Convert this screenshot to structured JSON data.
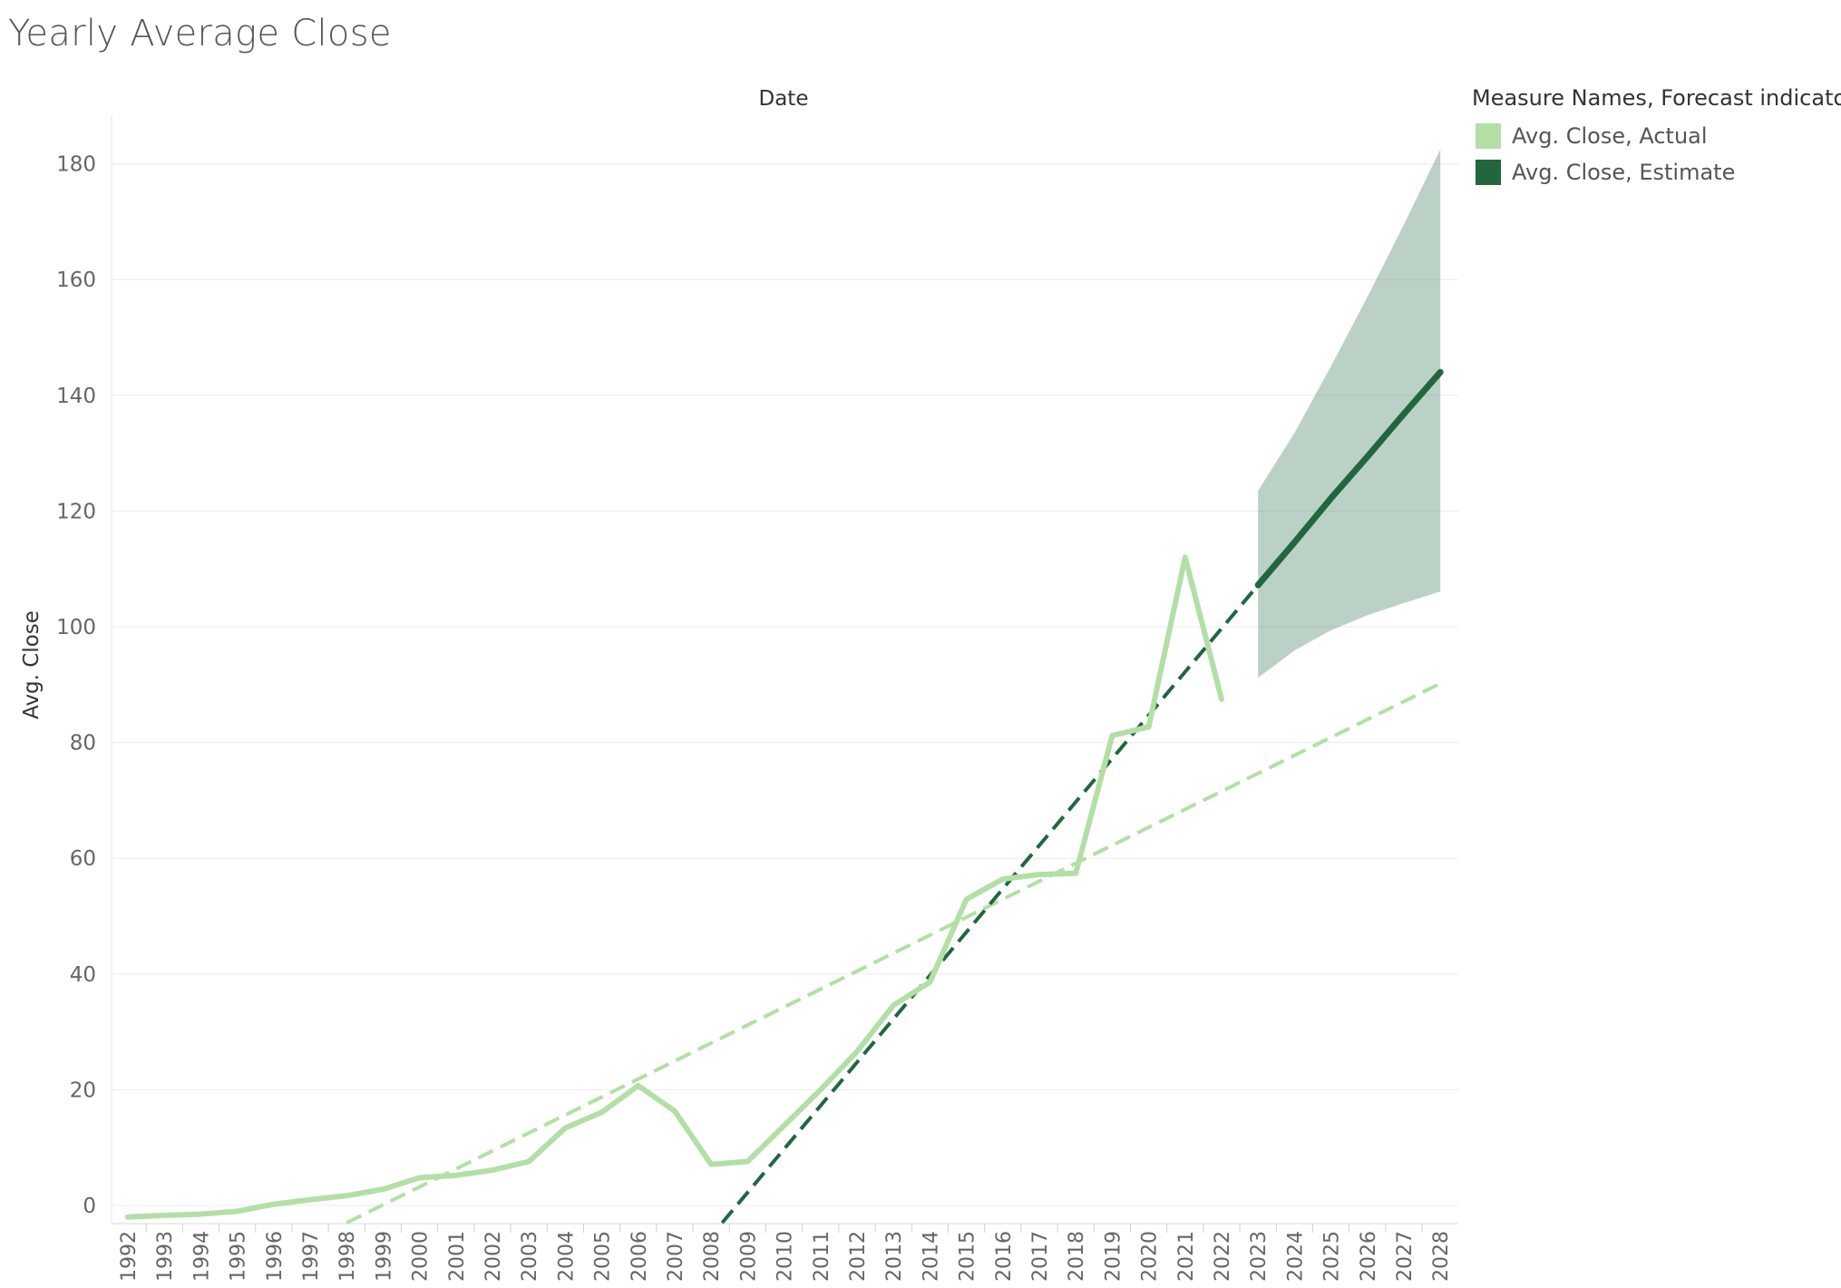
{
  "chart_data": {
    "type": "line",
    "title": "Yearly Average Close",
    "xlabel": "Date",
    "ylabel": "Avg. Close",
    "ylim": [
      -2,
      190
    ],
    "yticks": [
      0,
      20,
      40,
      60,
      80,
      100,
      120,
      140,
      160,
      180
    ],
    "grid": "horizontal",
    "x": [
      "1992",
      "1993",
      "1994",
      "1995",
      "1996",
      "1997",
      "1998",
      "1999",
      "2000",
      "2001",
      "2002",
      "2003",
      "2004",
      "2005",
      "2006",
      "2007",
      "2008",
      "2009",
      "2010",
      "2011",
      "2012",
      "2013",
      "2014",
      "2015",
      "2016",
      "2017",
      "2018",
      "2019",
      "2020",
      "2021",
      "2022",
      "2023",
      "2024",
      "2025",
      "2026",
      "2027",
      "2028"
    ],
    "legend_title": "Measure Names, Forecast indicator",
    "legend_position": "top-right",
    "series": [
      {
        "name": "Avg. Close, Actual",
        "color": "#b3dfa6",
        "style": "solid",
        "x": [
          "1992",
          "1993",
          "1994",
          "1995",
          "1996",
          "1997",
          "1998",
          "1999",
          "2000",
          "2001",
          "2002",
          "2003",
          "2004",
          "2005",
          "2006",
          "2007",
          "2008",
          "2009",
          "2010",
          "2011",
          "2012",
          "2013",
          "2014",
          "2015",
          "2016",
          "2017",
          "2018",
          "2019",
          "2020",
          "2021",
          "2022"
        ],
        "values": [
          -2.0,
          -1.7,
          -1.5,
          -1.0,
          0.2,
          1.0,
          1.7,
          2.8,
          4.8,
          5.2,
          6.1,
          7.6,
          13.4,
          16.1,
          20.7,
          16.3,
          7.1,
          7.6,
          13.8,
          20.0,
          26.6,
          34.6,
          38.6,
          52.9,
          56.4,
          57.2,
          57.4,
          81.2,
          82.7,
          112.0,
          87.5
        ]
      },
      {
        "name": "Avg. Close, Estimate",
        "color": "#226640",
        "style": "solid",
        "x": [
          "2023",
          "2024",
          "2025",
          "2026",
          "2027",
          "2028"
        ],
        "values": [
          107.2,
          114.6,
          122.2,
          129.4,
          136.8,
          144.0
        ],
        "interval_upper": [
          123.5,
          133.5,
          145.0,
          157.0,
          169.5,
          182.5
        ],
        "interval_lower": [
          91.2,
          95.9,
          99.4,
          102.0,
          104.1,
          106.1
        ]
      }
    ],
    "trend_lines": [
      {
        "series": "Avg. Close, Actual",
        "color": "#b3dfa6",
        "style": "dashed",
        "from": [
          "1998",
          -3.0
        ],
        "to": [
          "2028",
          90.2
        ]
      },
      {
        "series": "Avg. Close, Estimate",
        "color": "#226640",
        "style": "dashed",
        "from": [
          "2008.3",
          -3.0
        ],
        "to": [
          "2023",
          107.2
        ]
      }
    ]
  }
}
